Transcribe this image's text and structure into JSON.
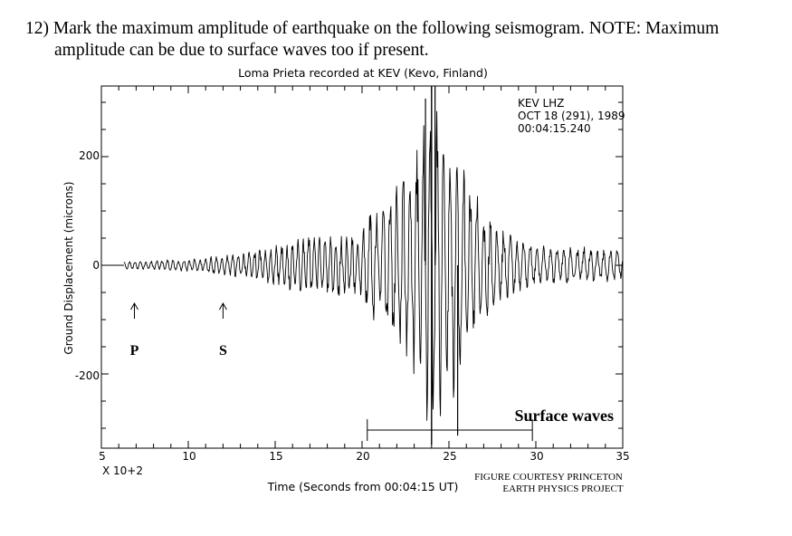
{
  "question": {
    "line1": "12) Mark the maximum amplitude of earthquake on the following seismogram. NOTE: Maximum",
    "line2": "amplitude can be due to surface waves too if present."
  },
  "chart_data": {
    "type": "line",
    "title": "Loma Prieta recorded at KEV (Kevo, Finland)",
    "xlabel": "Time (Seconds from 00:04:15 UT)",
    "ylabel": "Ground Displacement (microns)",
    "x_multiplier_label": "X 10+2",
    "xlim": [
      5,
      35
    ],
    "ylim": [
      -330,
      340
    ],
    "x_ticks": [
      "5",
      "10",
      "15",
      "20",
      "25",
      "30",
      "35"
    ],
    "y_ticks": [
      "200",
      "0",
      "-200"
    ],
    "station_info": [
      "KEV  LHZ",
      "OCT 18 (291), 1989",
      "00:04:15.240"
    ],
    "phase_markers": [
      {
        "label": "P",
        "x": 6.9
      },
      {
        "label": "S",
        "x": 12.0
      }
    ],
    "surface_waves": {
      "label": "Surface waves",
      "start": 20.3,
      "end": 29.8
    },
    "max_amplitude": {
      "x": 24.0,
      "peak": 330,
      "trough": -330
    },
    "envelope": [
      [
        6.3,
        8
      ],
      [
        8,
        10
      ],
      [
        10,
        12
      ],
      [
        12,
        20
      ],
      [
        13.5,
        25
      ],
      [
        15,
        40
      ],
      [
        17,
        60
      ],
      [
        19,
        60
      ],
      [
        20,
        60
      ],
      [
        20.5,
        110
      ],
      [
        21,
        100
      ],
      [
        22,
        160
      ],
      [
        23,
        220
      ],
      [
        23.5,
        300
      ],
      [
        24,
        330
      ],
      [
        25,
        260
      ],
      [
        25.5,
        250
      ],
      [
        26,
        160
      ],
      [
        27,
        110
      ],
      [
        28,
        70
      ],
      [
        30,
        40
      ],
      [
        35,
        30
      ]
    ],
    "credit": [
      "FIGURE COURTESY PRINCETON",
      "EARTH PHYSICS PROJECT"
    ]
  }
}
